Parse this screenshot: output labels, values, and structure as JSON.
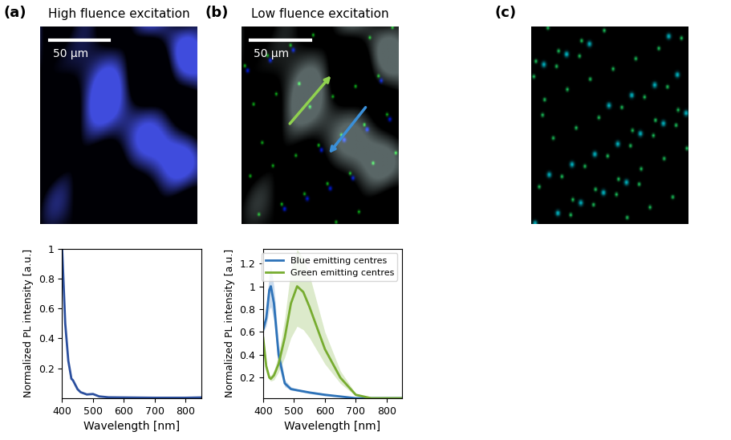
{
  "panels": [
    {
      "label": "(a)",
      "title": "High fluence excitation",
      "scale_bar": "50 µm"
    },
    {
      "label": "(b)",
      "title": "Low fluence excitation",
      "scale_bar": "50 µm"
    },
    {
      "label": "(c)"
    }
  ],
  "chart_data": [
    {
      "type": "line",
      "xlabel": "Wavelength [nm]",
      "ylabel": "Normalized PL intensity [a.u.]",
      "x": [
        400,
        405,
        410,
        420,
        430,
        435,
        440,
        450,
        460,
        480,
        500,
        520,
        550,
        600,
        650,
        700,
        750,
        800,
        850
      ],
      "values": [
        1.0,
        0.75,
        0.5,
        0.25,
        0.13,
        0.12,
        0.1,
        0.06,
        0.04,
        0.025,
        0.028,
        0.012,
        0.006,
        0.005,
        0.004,
        0.003,
        0.003,
        0.003,
        0.005
      ],
      "color": "#2b4f9e",
      "xlim": [
        400,
        850
      ],
      "xticks": [
        400,
        500,
        600,
        700,
        800
      ],
      "ylim": [
        0,
        1
      ],
      "yticks": [
        0.2,
        0.4,
        0.6,
        0.8,
        1
      ]
    },
    {
      "type": "line",
      "xlabel": "Wavelength [nm]",
      "ylabel": "Normalized PL intensity [a.u.]",
      "x": [
        400,
        410,
        420,
        425,
        435,
        450,
        470,
        490,
        510,
        530,
        550,
        600,
        650,
        700,
        750,
        800,
        850
      ],
      "series": [
        {
          "name": "Blue emitting centres",
          "color": "#2d72b8",
          "values": [
            0.62,
            0.72,
            0.97,
            1.0,
            0.85,
            0.4,
            0.15,
            0.1,
            0.09,
            0.08,
            0.07,
            0.05,
            0.035,
            0.02,
            0.02,
            0.02,
            0.02
          ],
          "band_low": [
            0.6,
            0.65,
            0.8,
            0.82,
            0.7,
            0.3,
            0.12,
            0.09,
            0.08,
            0.07,
            0.06,
            0.04,
            0.03,
            0.02,
            0.02,
            0.02,
            0.02
          ],
          "band_high": [
            0.64,
            0.8,
            1.12,
            1.17,
            1.0,
            0.5,
            0.18,
            0.12,
            0.1,
            0.09,
            0.08,
            0.06,
            0.04,
            0.02,
            0.02,
            0.02,
            0.02
          ]
        },
        {
          "name": "Green emitting centres",
          "color": "#77ac30",
          "values": [
            0.55,
            0.3,
            0.2,
            0.19,
            0.22,
            0.32,
            0.55,
            0.85,
            1.0,
            0.95,
            0.82,
            0.45,
            0.2,
            0.05,
            0.02,
            0.02,
            0.02
          ],
          "band_low": [
            0.53,
            0.27,
            0.18,
            0.17,
            0.18,
            0.25,
            0.38,
            0.55,
            0.65,
            0.62,
            0.55,
            0.32,
            0.15,
            0.04,
            0.02,
            0.02,
            0.02
          ],
          "band_high": [
            0.57,
            0.33,
            0.22,
            0.22,
            0.26,
            0.4,
            0.72,
            1.15,
            1.32,
            1.25,
            1.1,
            0.6,
            0.26,
            0.06,
            0.02,
            0.02,
            0.02
          ]
        }
      ],
      "legend": "upper right",
      "xlim": [
        400,
        850
      ],
      "xticks": [
        400,
        500,
        600,
        700,
        800
      ],
      "ylim": [
        0.02,
        1.33
      ],
      "yticks": [
        0.2,
        0.4,
        0.6,
        0.8,
        1,
        1.2
      ]
    }
  ]
}
